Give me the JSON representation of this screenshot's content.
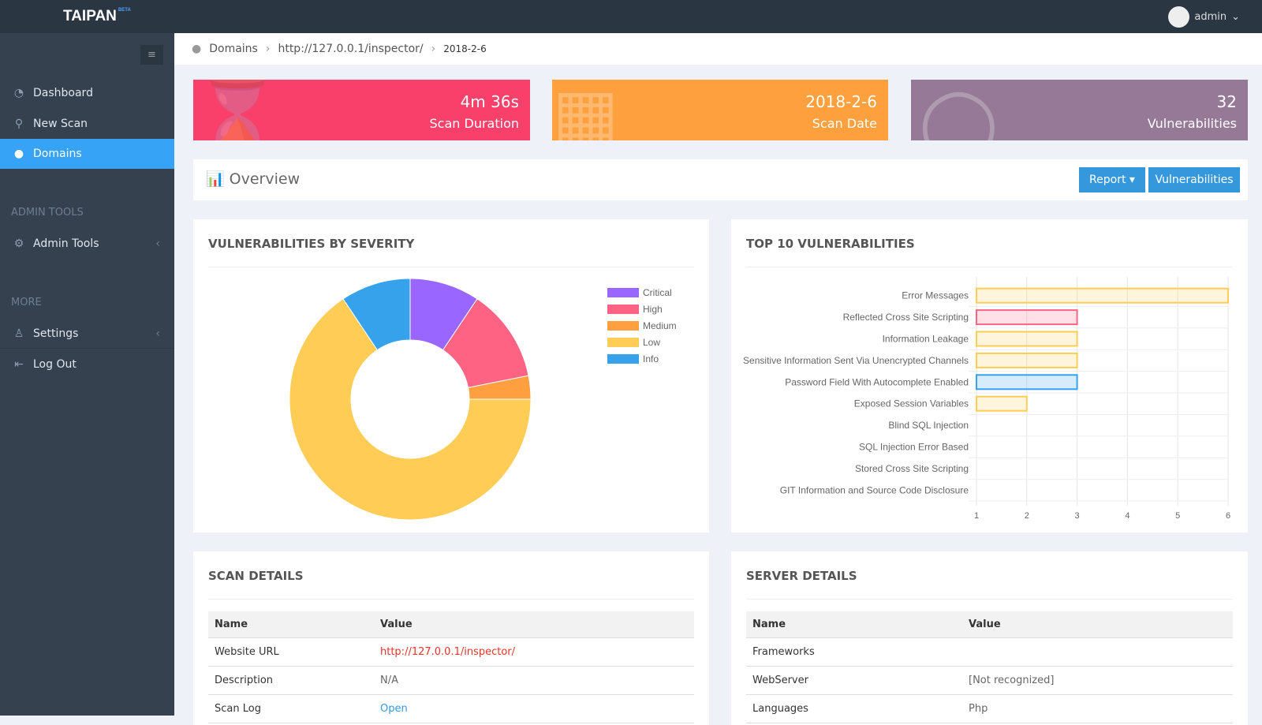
{
  "header": {
    "logo": "TAIPAN",
    "logo_badge": "BETA",
    "user": "admin"
  },
  "sidebar": {
    "items": [
      {
        "label": "Dashboard",
        "icon": "dashboard-icon"
      },
      {
        "label": "New Scan",
        "icon": "search-icon"
      },
      {
        "label": "Domains",
        "icon": "globe-icon",
        "active": true
      }
    ],
    "admin_header": "ADMIN TOOLS",
    "admin_item": "Admin Tools",
    "more_header": "MORE",
    "settings": "Settings",
    "logout": "Log Out"
  },
  "breadcrumb": [
    "Domains",
    "http://127.0.0.1/inspector/",
    "2018-2-6"
  ],
  "stats": [
    {
      "value": "4m 36s",
      "label": "Scan Duration",
      "color": "#f8406a"
    },
    {
      "value": "2018-2-6",
      "label": "Scan Date",
      "color": "#ffa03e"
    },
    {
      "value": "32",
      "label": "Vulnerabilities",
      "color": "#957996"
    }
  ],
  "overview": {
    "title": "Overview",
    "report": "Report",
    "vulnerabilities": "Vulnerabilities"
  },
  "chart_data": [
    {
      "type": "pie",
      "title": "VULNERABILITIES BY SEVERITY",
      "donut": true,
      "legend": "right",
      "categories": [
        "Critical",
        "High",
        "Medium",
        "Low",
        "Info"
      ],
      "values": [
        3,
        4,
        1,
        21,
        3
      ],
      "colors": [
        "#9966ff",
        "#ff6384",
        "#ff9f40",
        "#ffcd56",
        "#36a2eb"
      ]
    },
    {
      "type": "bar",
      "orientation": "horizontal",
      "title": "TOP 10 VULNERABILITIES",
      "categories": [
        "Error Messages",
        "Reflected Cross Site Scripting",
        "Information Leakage",
        "Sensitive Information Sent Via Unencrypted Channels",
        "Password Field With Autocomplete Enabled",
        "Exposed Session Variables",
        "Blind SQL Injection",
        "SQL Injection Error Based",
        "Stored Cross Site Scripting",
        "GIT Information and Source Code Disclosure"
      ],
      "values": [
        6,
        3,
        3,
        3,
        3,
        2,
        1,
        1,
        1,
        1
      ],
      "colors": [
        "#ffcd56",
        "#ff6384",
        "#ffcd56",
        "#ffcd56",
        "#36a2eb",
        "#ffcd56",
        "#ffcd56",
        "#ffcd56",
        "#ffcd56",
        "#ffcd56"
      ],
      "xlim": [
        1,
        6
      ],
      "xticks": [
        "1",
        "2",
        "3",
        "4",
        "5",
        "6"
      ],
      "grid": true
    }
  ],
  "scan_details": {
    "title": "SCAN DETAILS",
    "headers": [
      "Name",
      "Value"
    ],
    "rows": [
      [
        "Website URL",
        "http://127.0.0.1/inspector/"
      ],
      [
        "Description",
        "N/A"
      ],
      [
        "Scan Log",
        "Open"
      ]
    ]
  },
  "server_details": {
    "title": "SERVER DETAILS",
    "headers": [
      "Name",
      "Value"
    ],
    "rows": [
      [
        "Frameworks",
        ""
      ],
      [
        "WebServer",
        "[Not recognized]"
      ],
      [
        "Languages",
        "Php"
      ]
    ]
  }
}
